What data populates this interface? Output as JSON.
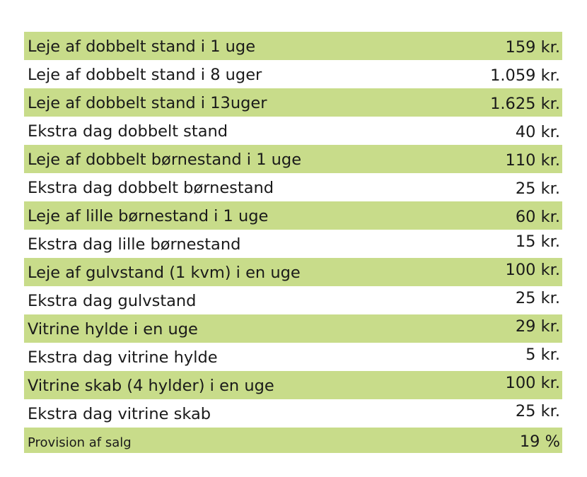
{
  "rows": [
    {
      "label": "Leje af dobbelt stand i 1 uge",
      "price": "159 kr."
    },
    {
      "label": "Leje af dobbelt stand i 8 uger",
      "price": "1.059 kr."
    },
    {
      "label": "Leje af dobbelt stand i 13uger",
      "price": "1.625 kr."
    },
    {
      "label": "Ekstra dag dobbelt stand",
      "price": "40 kr."
    },
    {
      "label": "Leje af dobbelt børnestand i 1 uge",
      "price": "110 kr."
    },
    {
      "label": "Ekstra dag dobbelt børnestand",
      "price": "25 kr."
    },
    {
      "label": "Leje af lille børnestand i 1 uge",
      "price": "60 kr."
    },
    {
      "label": "Ekstra dag lille børnestand",
      "price": "15 kr."
    },
    {
      "label": "Leje af gulvstand (1 kvm) i en uge",
      "price": "100 kr."
    },
    {
      "label": "Ekstra dag gulvstand",
      "price": "25 kr."
    },
    {
      "label": "Vitrine hylde i en uge",
      "price": "29 kr."
    },
    {
      "label": "Ekstra dag vitrine hylde",
      "price": "5 kr."
    },
    {
      "label": "Vitrine skab (4 hylder) i en uge",
      "price": "100 kr."
    },
    {
      "label": "Ekstra dag vitrine skab",
      "price": "25 kr."
    },
    {
      "label": "Provision af salg",
      "price": "19 %"
    }
  ],
  "colors": {
    "shaded_row": "#c8dc8a",
    "plain_row": "#ffffff",
    "text": "#1a1a1a"
  }
}
